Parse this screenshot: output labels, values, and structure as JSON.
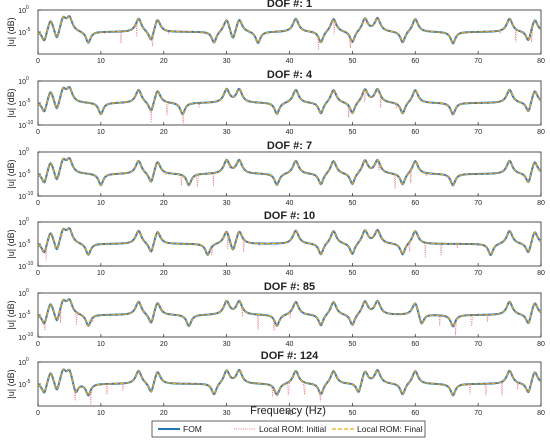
{
  "colors": {
    "fom": "#1f77b4",
    "initial": "#e8747c",
    "final": "#f0a818"
  },
  "chart_data": {
    "type": "line",
    "xlabel": "Frequency (Hz)",
    "ylabel": "|u| (dB)",
    "xlim": [
      0,
      80
    ],
    "xticks": [
      "0",
      "10",
      "20",
      "30",
      "40",
      "50",
      "60",
      "70",
      "80"
    ],
    "yscale": "log",
    "legend": {
      "placement": "bottom-center",
      "entries": [
        "FOM",
        "Local ROM: Initial",
        "Local ROM: Final"
      ]
    },
    "panels": [
      {
        "title": "DOF #: 1",
        "ylim": [
          1e-10,
          1
        ],
        "yticks": [
          "10",
          "10"
        ],
        "ytick_exp": [
          "0",
          "-5"
        ],
        "baseline": 1e-05,
        "resonances": [
          2,
          4,
          5,
          16,
          19,
          30,
          32,
          41,
          47,
          52,
          54,
          60,
          75,
          79
        ],
        "antiresonances": [
          1,
          3,
          8,
          18,
          28,
          31,
          35,
          45,
          50,
          58,
          66,
          78
        ]
      },
      {
        "title": "DOF #: 4",
        "ylim": [
          1e-10,
          1
        ],
        "yticks": [
          "10",
          "10",
          "10"
        ],
        "ytick_exp": [
          "0",
          "-5",
          "-10"
        ],
        "baseline": 1e-05,
        "resonances": [
          2,
          4,
          5,
          16,
          19,
          30,
          32,
          41,
          47,
          52,
          54,
          60,
          75,
          79
        ],
        "antiresonances": [
          1,
          3,
          10,
          18,
          23,
          38,
          45,
          50,
          58,
          66,
          78
        ]
      },
      {
        "title": "DOF #: 7",
        "ylim": [
          1e-10,
          1
        ],
        "yticks": [
          "10",
          "10",
          "10"
        ],
        "ytick_exp": [
          "0",
          "-5",
          "-10"
        ],
        "baseline": 1e-05,
        "resonances": [
          2,
          4,
          5,
          16,
          19,
          30,
          32,
          41,
          47,
          52,
          54,
          60,
          75,
          79
        ],
        "antiresonances": [
          1,
          3,
          10,
          18,
          24,
          38,
          45,
          50,
          58,
          66,
          78
        ]
      },
      {
        "title": "DOF #: 10",
        "ylim": [
          1e-10,
          1
        ],
        "yticks": [
          "10",
          "10",
          "10"
        ],
        "ytick_exp": [
          "0",
          "-5",
          "-10"
        ],
        "baseline": 1e-05,
        "resonances": [
          2,
          4,
          5,
          16,
          19,
          30,
          32,
          41,
          47,
          52,
          54,
          60,
          75,
          79
        ],
        "antiresonances": [
          1,
          3,
          8,
          18,
          27,
          31,
          45,
          50,
          58,
          72,
          78
        ]
      },
      {
        "title": "DOF #: 85",
        "ylim": [
          1e-10,
          1
        ],
        "yticks": [
          "10",
          "10",
          "10"
        ],
        "ytick_exp": [
          "0",
          "-5",
          "-10"
        ],
        "baseline": 1e-05,
        "resonances": [
          2,
          4,
          5,
          16,
          19,
          30,
          32,
          41,
          47,
          52,
          54,
          60,
          75,
          79
        ],
        "antiresonances": [
          1,
          3,
          8,
          18,
          24,
          38,
          45,
          50,
          61,
          66,
          78
        ]
      },
      {
        "title": "DOF #: 124",
        "ylim": [
          1e-10,
          1
        ],
        "yticks": [
          "10",
          "10"
        ],
        "ytick_exp": [
          "0",
          "-5"
        ],
        "baseline": 1e-05,
        "resonances": [
          2,
          4,
          5,
          16,
          19,
          30,
          32,
          41,
          47,
          52,
          54,
          60,
          75,
          79
        ],
        "antiresonances": [
          1,
          3,
          6,
          8,
          18,
          28,
          38,
          45,
          51,
          58,
          66,
          78
        ]
      }
    ]
  }
}
